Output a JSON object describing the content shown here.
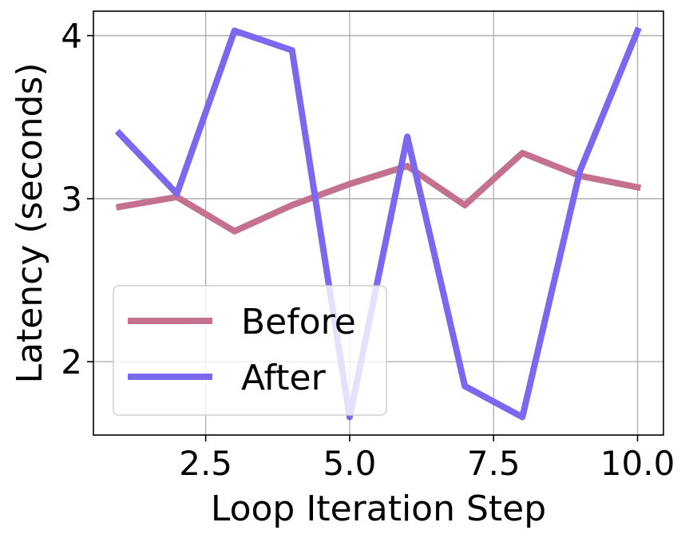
{
  "chart_data": {
    "type": "line",
    "title": "",
    "xlabel": "Loop Iteration Step",
    "ylabel": "Latency (seconds)",
    "xlim": [
      0.55,
      10.45
    ],
    "ylim": [
      1.55,
      4.15
    ],
    "xticks": [
      2.5,
      5.0,
      7.5,
      10.0
    ],
    "xtick_labels": [
      "2.5",
      "5.0",
      "7.5",
      "10.0"
    ],
    "yticks": [
      2,
      3,
      4
    ],
    "ytick_labels": [
      "2",
      "3",
      "4"
    ],
    "grid": true,
    "legend_position": "lower-left",
    "x": [
      1,
      2,
      3,
      4,
      5,
      6,
      7,
      8,
      9,
      10
    ],
    "series": [
      {
        "name": "Before",
        "color": "#c4718f",
        "values": [
          2.95,
          3.01,
          2.8,
          2.96,
          3.09,
          3.2,
          2.96,
          3.28,
          3.14,
          3.07
        ]
      },
      {
        "name": "After",
        "color": "#7b68ee",
        "values": [
          3.4,
          3.03,
          4.03,
          3.91,
          1.66,
          3.38,
          1.85,
          1.66,
          3.17,
          4.03
        ]
      }
    ]
  }
}
